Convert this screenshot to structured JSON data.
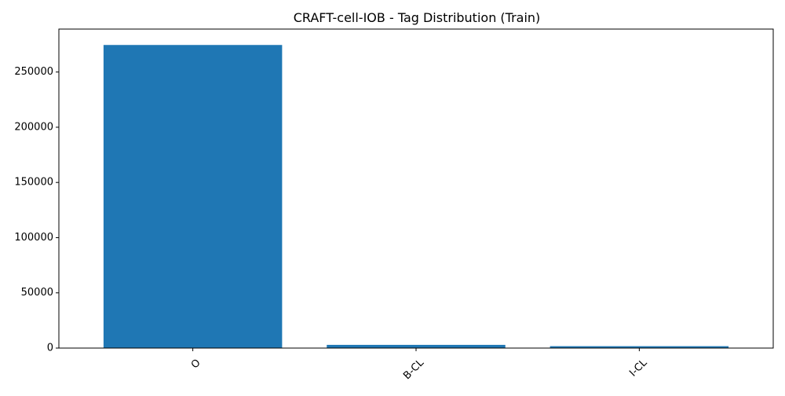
{
  "chart_data": {
    "type": "bar",
    "title": "CRAFT-cell-IOB - Tag Distribution (Train)",
    "xlabel": "",
    "ylabel": "",
    "categories": [
      "O",
      "B-CL",
      "I-CL"
    ],
    "values": [
      274500,
      2900,
      1700
    ],
    "ylim": [
      0,
      288900
    ],
    "yticks": [
      0,
      50000,
      100000,
      150000,
      200000,
      250000
    ],
    "ytick_labels": [
      "0",
      "50000",
      "100000",
      "150000",
      "200000",
      "250000"
    ],
    "grid": false,
    "legend": "none",
    "bar_color": "#1f77b4",
    "x_tick_rotation": 45
  }
}
